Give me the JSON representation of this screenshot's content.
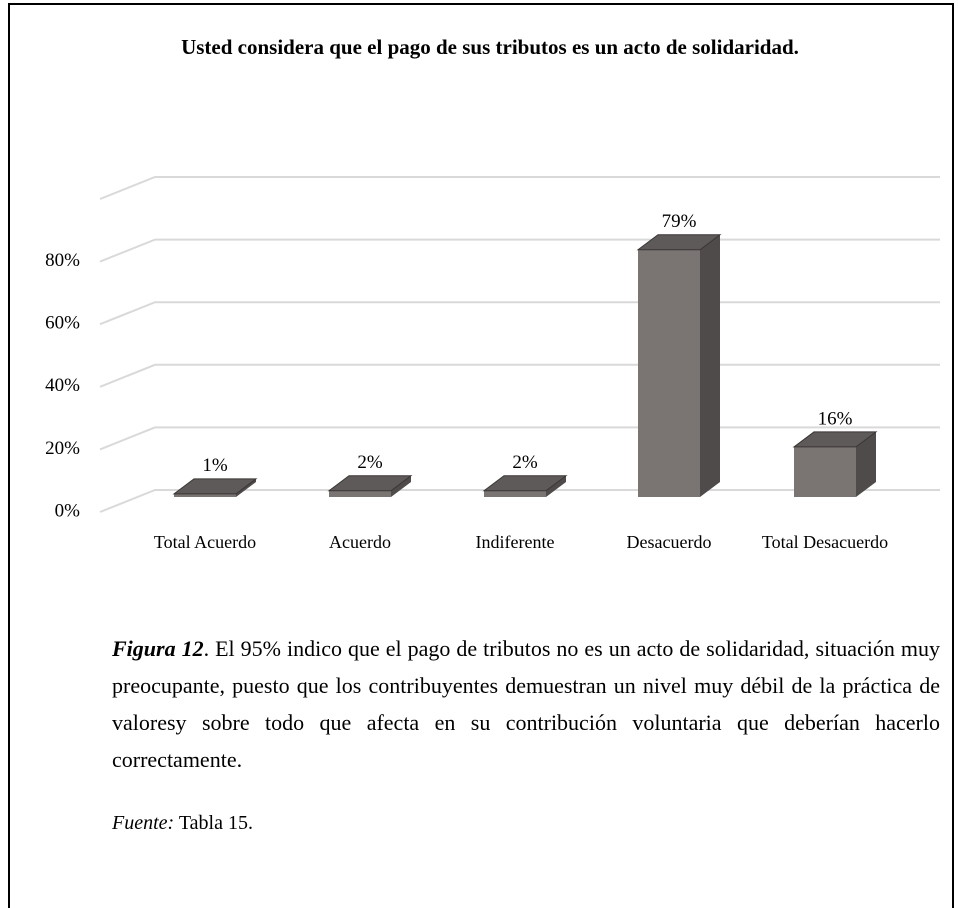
{
  "chart_data": {
    "type": "bar3d",
    "title": "Usted considera que el pago de sus tributos es un acto de solidaridad.",
    "categories": [
      "Total Acuerdo",
      "Acuerdo",
      "Indiferente",
      "Desacuerdo",
      "Total Desacuerdo"
    ],
    "values": [
      1,
      2,
      2,
      79,
      16
    ],
    "value_labels": [
      "1%",
      "2%",
      "2%",
      "79%",
      "16%"
    ],
    "color": "#7a7473",
    "ylim": [
      0,
      100
    ],
    "yticks": [
      {
        "value": 0,
        "label": "0%"
      },
      {
        "value": 20,
        "label": "20%"
      },
      {
        "value": 40,
        "label": "40%"
      },
      {
        "value": 60,
        "label": "60%"
      },
      {
        "value": 80,
        "label": "80%"
      }
    ],
    "grid": true
  },
  "caption": {
    "label": "Figura 12",
    "text": ". El 95% indico que el pago de tributos no es un acto de solidaridad, situación muy preocupante, puesto que los contribuyentes demuestran un nivel muy débil de la práctica de valoresy sobre todo que afecta en su contribución voluntaria que deberían hacerlo correctamente."
  },
  "source": {
    "label": "Fuente:",
    "text": " Tabla 15."
  }
}
